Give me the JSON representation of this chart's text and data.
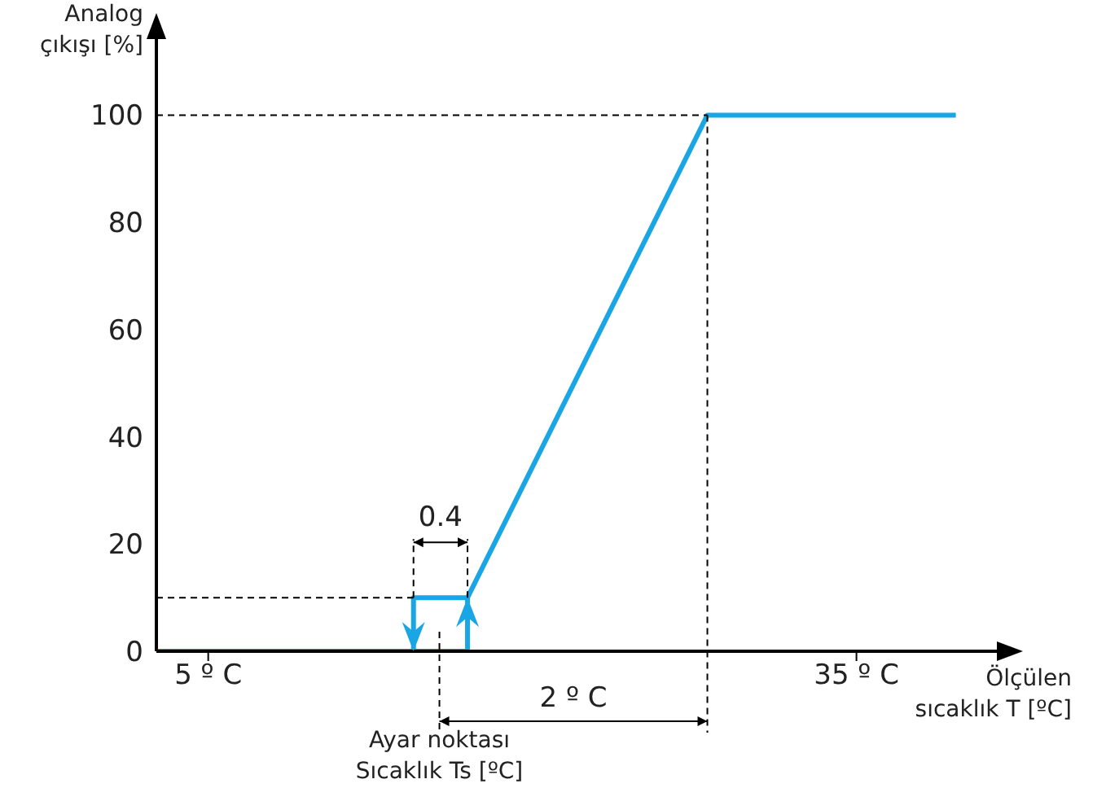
{
  "chart_data": {
    "type": "line",
    "ylabel": "Analog\nçıkışı [%]",
    "xlabel": "Ölçülen\nsıcaklık T [ºC]",
    "xlim": [
      2.6,
      41.8
    ],
    "xticks": [
      {
        "value": 5,
        "label": "5 º C"
      },
      {
        "value": 35,
        "label": "35 º C"
      }
    ],
    "ylim": [
      0,
      116
    ],
    "yticks": [
      0,
      20,
      40,
      60,
      80,
      100
    ],
    "line_style": "solid",
    "series": [
      {
        "color": "#1aa6e4",
        "x": [
          2.6,
          17,
          17,
          28.1,
          39.6
        ],
        "values": [
          0,
          0,
          10,
          100,
          100
        ]
      },
      {
        "color": "#1aa6e4",
        "x": [
          14.5,
          14.5,
          17
        ],
        "values": [
          0,
          10,
          10
        ]
      }
    ],
    "ref_lines": [
      {
        "axis": "y",
        "value": 100,
        "color": "#000000",
        "line_style": "dashed"
      },
      {
        "axis": "y",
        "value": 10,
        "color": "#000000",
        "line_style": "dashed"
      },
      {
        "axis": "x",
        "value": 28.1,
        "color": "#000000",
        "line_style": "dashed"
      },
      {
        "axis": "x",
        "value": 15.7,
        "label": "Ayar noktası\nSıcaklık Ts [ºC]",
        "color": "#000000",
        "line_style": "dashed"
      }
    ],
    "annotations": [
      {
        "text": "0.4",
        "x": 15.75,
        "y": 10
      },
      "2 º C"
    ]
  }
}
